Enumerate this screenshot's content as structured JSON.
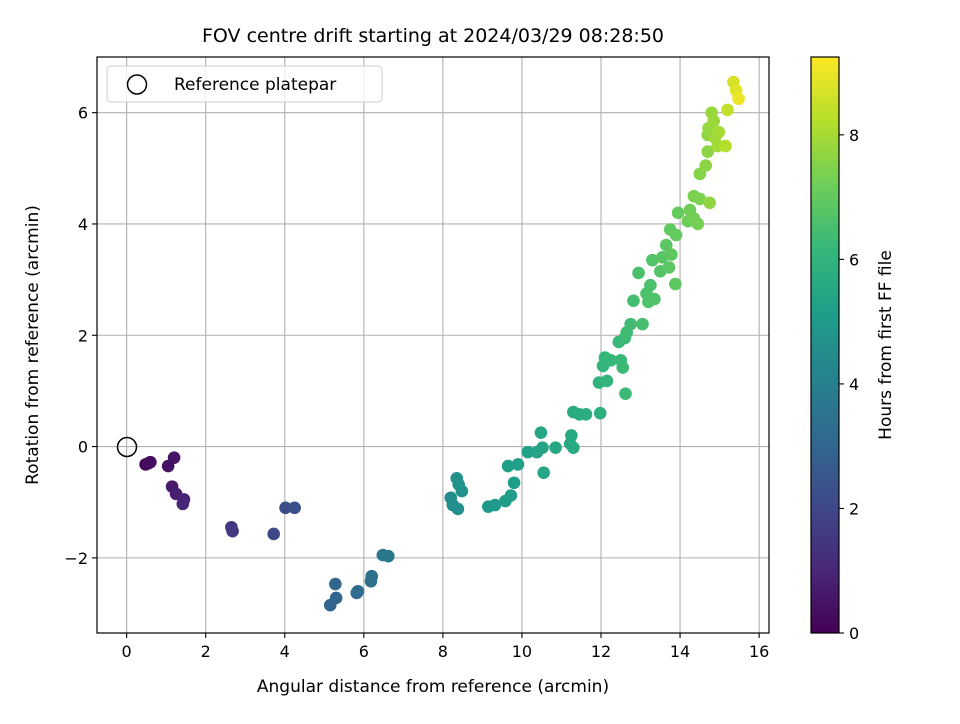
{
  "chart_data": {
    "type": "scatter",
    "title": "FOV centre drift starting at 2024/03/29 08:28:50",
    "xlabel": "Angular distance from reference (arcmin)",
    "ylabel": "Rotation from reference (arcmin)",
    "xlim": [
      -0.75,
      16.25
    ],
    "ylim": [
      -3.35,
      7.0
    ],
    "xticks": [
      0,
      2,
      4,
      6,
      8,
      10,
      12,
      14,
      16
    ],
    "yticks": [
      -2,
      0,
      2,
      4,
      6
    ],
    "xtick_labels": [
      "0",
      "2",
      "4",
      "6",
      "8",
      "10",
      "12",
      "14",
      "16"
    ],
    "ytick_labels": [
      "−2",
      "0",
      "2",
      "4",
      "6"
    ],
    "grid": true,
    "legend": {
      "placement": "top-left",
      "entries": [
        {
          "label": "Reference platepar",
          "marker": "open-circle"
        }
      ]
    },
    "reference_point": {
      "x": 0,
      "y": 0
    },
    "colorbar": {
      "label": "Hours from first FF file",
      "colormap": "viridis",
      "range": [
        0,
        9.25
      ],
      "ticks": [
        0,
        2,
        4,
        6,
        8
      ],
      "tick_labels": [
        "0",
        "2",
        "4",
        "6",
        "8"
      ]
    },
    "colormap_stops": [
      "#440154",
      "#482878",
      "#3e4989",
      "#31688e",
      "#26828e",
      "#1f9e89",
      "#35b779",
      "#6ece58",
      "#b5de2b",
      "#fde725"
    ],
    "points": [
      {
        "x": 0.48,
        "y": -0.32,
        "t": 0.1
      },
      {
        "x": 0.55,
        "y": -0.3,
        "t": 0.2
      },
      {
        "x": 0.6,
        "y": -0.28,
        "t": 0.3
      },
      {
        "x": 1.05,
        "y": -0.35,
        "t": 0.45
      },
      {
        "x": 1.2,
        "y": -0.2,
        "t": 0.5
      },
      {
        "x": 1.15,
        "y": -0.72,
        "t": 0.7
      },
      {
        "x": 1.25,
        "y": -0.85,
        "t": 0.8
      },
      {
        "x": 1.45,
        "y": -0.95,
        "t": 0.9
      },
      {
        "x": 1.42,
        "y": -1.03,
        "t": 1.0
      },
      {
        "x": 2.65,
        "y": -1.45,
        "t": 1.5
      },
      {
        "x": 2.68,
        "y": -1.52,
        "t": 1.55
      },
      {
        "x": 3.72,
        "y": -1.57,
        "t": 2.0
      },
      {
        "x": 4.02,
        "y": -1.1,
        "t": 2.2
      },
      {
        "x": 4.25,
        "y": -1.1,
        "t": 2.3
      },
      {
        "x": 5.15,
        "y": -2.85,
        "t": 2.9
      },
      {
        "x": 5.3,
        "y": -2.72,
        "t": 3.0
      },
      {
        "x": 5.28,
        "y": -2.47,
        "t": 3.05
      },
      {
        "x": 5.82,
        "y": -2.63,
        "t": 3.2
      },
      {
        "x": 5.85,
        "y": -2.6,
        "t": 3.25
      },
      {
        "x": 6.18,
        "y": -2.42,
        "t": 3.4
      },
      {
        "x": 6.2,
        "y": -2.33,
        "t": 3.45
      },
      {
        "x": 6.48,
        "y": -1.95,
        "t": 3.6
      },
      {
        "x": 6.62,
        "y": -1.97,
        "t": 3.7
      },
      {
        "x": 8.2,
        "y": -0.92,
        "t": 4.5
      },
      {
        "x": 8.25,
        "y": -1.05,
        "t": 4.55
      },
      {
        "x": 8.38,
        "y": -1.12,
        "t": 4.6
      },
      {
        "x": 8.35,
        "y": -0.57,
        "t": 4.65
      },
      {
        "x": 8.4,
        "y": -0.68,
        "t": 4.7
      },
      {
        "x": 8.48,
        "y": -0.8,
        "t": 4.75
      },
      {
        "x": 9.15,
        "y": -1.08,
        "t": 4.95
      },
      {
        "x": 9.32,
        "y": -1.05,
        "t": 5.0
      },
      {
        "x": 9.58,
        "y": -0.98,
        "t": 5.05
      },
      {
        "x": 9.72,
        "y": -0.88,
        "t": 5.1
      },
      {
        "x": 9.8,
        "y": -0.65,
        "t": 5.15
      },
      {
        "x": 9.65,
        "y": -0.35,
        "t": 5.2
      },
      {
        "x": 9.9,
        "y": -0.32,
        "t": 5.25
      },
      {
        "x": 10.15,
        "y": -0.1,
        "t": 5.3
      },
      {
        "x": 10.38,
        "y": -0.1,
        "t": 5.35
      },
      {
        "x": 10.52,
        "y": -0.02,
        "t": 5.4
      },
      {
        "x": 10.48,
        "y": 0.25,
        "t": 5.45
      },
      {
        "x": 10.55,
        "y": -0.47,
        "t": 5.45
      },
      {
        "x": 10.85,
        "y": -0.02,
        "t": 5.5
      },
      {
        "x": 11.22,
        "y": 0.05,
        "t": 5.55
      },
      {
        "x": 11.25,
        "y": 0.2,
        "t": 5.6
      },
      {
        "x": 11.3,
        "y": -0.02,
        "t": 5.62
      },
      {
        "x": 11.3,
        "y": 0.62,
        "t": 5.65
      },
      {
        "x": 11.45,
        "y": 0.58,
        "t": 5.7
      },
      {
        "x": 11.62,
        "y": 0.58,
        "t": 5.75
      },
      {
        "x": 11.98,
        "y": 0.6,
        "t": 5.85
      },
      {
        "x": 11.95,
        "y": 1.15,
        "t": 6.0
      },
      {
        "x": 12.05,
        "y": 1.45,
        "t": 6.05
      },
      {
        "x": 12.15,
        "y": 1.18,
        "t": 6.05
      },
      {
        "x": 12.1,
        "y": 1.6,
        "t": 6.1
      },
      {
        "x": 12.25,
        "y": 1.55,
        "t": 6.15
      },
      {
        "x": 12.45,
        "y": 1.88,
        "t": 6.2
      },
      {
        "x": 12.5,
        "y": 1.55,
        "t": 6.2
      },
      {
        "x": 12.55,
        "y": 1.42,
        "t": 6.25
      },
      {
        "x": 12.6,
        "y": 1.95,
        "t": 6.3
      },
      {
        "x": 12.65,
        "y": 2.05,
        "t": 6.35
      },
      {
        "x": 12.62,
        "y": 0.95,
        "t": 6.3
      },
      {
        "x": 12.75,
        "y": 2.2,
        "t": 6.4
      },
      {
        "x": 12.82,
        "y": 2.62,
        "t": 6.45
      },
      {
        "x": 13.05,
        "y": 2.2,
        "t": 6.5
      },
      {
        "x": 12.95,
        "y": 3.12,
        "t": 6.55
      },
      {
        "x": 13.15,
        "y": 2.75,
        "t": 6.6
      },
      {
        "x": 13.25,
        "y": 2.9,
        "t": 6.6
      },
      {
        "x": 13.2,
        "y": 2.6,
        "t": 6.65
      },
      {
        "x": 13.35,
        "y": 2.65,
        "t": 6.65
      },
      {
        "x": 13.3,
        "y": 3.35,
        "t": 6.7
      },
      {
        "x": 13.5,
        "y": 3.15,
        "t": 6.75
      },
      {
        "x": 13.55,
        "y": 3.4,
        "t": 6.8
      },
      {
        "x": 13.65,
        "y": 3.62,
        "t": 6.85
      },
      {
        "x": 13.72,
        "y": 3.22,
        "t": 6.85
      },
      {
        "x": 13.78,
        "y": 3.45,
        "t": 6.9
      },
      {
        "x": 13.88,
        "y": 2.92,
        "t": 6.9
      },
      {
        "x": 13.75,
        "y": 3.9,
        "t": 6.95
      },
      {
        "x": 13.9,
        "y": 3.8,
        "t": 7.0
      },
      {
        "x": 13.95,
        "y": 4.2,
        "t": 7.05
      },
      {
        "x": 14.2,
        "y": 4.05,
        "t": 7.15
      },
      {
        "x": 14.25,
        "y": 4.25,
        "t": 7.2
      },
      {
        "x": 14.35,
        "y": 4.1,
        "t": 7.25
      },
      {
        "x": 14.45,
        "y": 4.0,
        "t": 7.3
      },
      {
        "x": 14.35,
        "y": 4.5,
        "t": 7.35
      },
      {
        "x": 14.5,
        "y": 4.45,
        "t": 7.4
      },
      {
        "x": 14.5,
        "y": 4.9,
        "t": 7.5
      },
      {
        "x": 14.65,
        "y": 5.05,
        "t": 7.6
      },
      {
        "x": 14.7,
        "y": 5.3,
        "t": 7.65
      },
      {
        "x": 14.7,
        "y": 5.6,
        "t": 7.7
      },
      {
        "x": 14.72,
        "y": 5.72,
        "t": 7.75
      },
      {
        "x": 14.8,
        "y": 6.0,
        "t": 7.8
      },
      {
        "x": 14.85,
        "y": 5.85,
        "t": 7.85
      },
      {
        "x": 14.88,
        "y": 5.55,
        "t": 7.9
      },
      {
        "x": 14.95,
        "y": 5.4,
        "t": 7.95
      },
      {
        "x": 14.98,
        "y": 5.65,
        "t": 8.0
      },
      {
        "x": 14.75,
        "y": 4.38,
        "t": 7.7
      },
      {
        "x": 15.15,
        "y": 5.4,
        "t": 8.2
      },
      {
        "x": 15.2,
        "y": 6.05,
        "t": 8.4
      },
      {
        "x": 15.35,
        "y": 6.55,
        "t": 8.7
      },
      {
        "x": 15.42,
        "y": 6.4,
        "t": 8.85
      },
      {
        "x": 15.48,
        "y": 6.25,
        "t": 9.0
      }
    ]
  }
}
